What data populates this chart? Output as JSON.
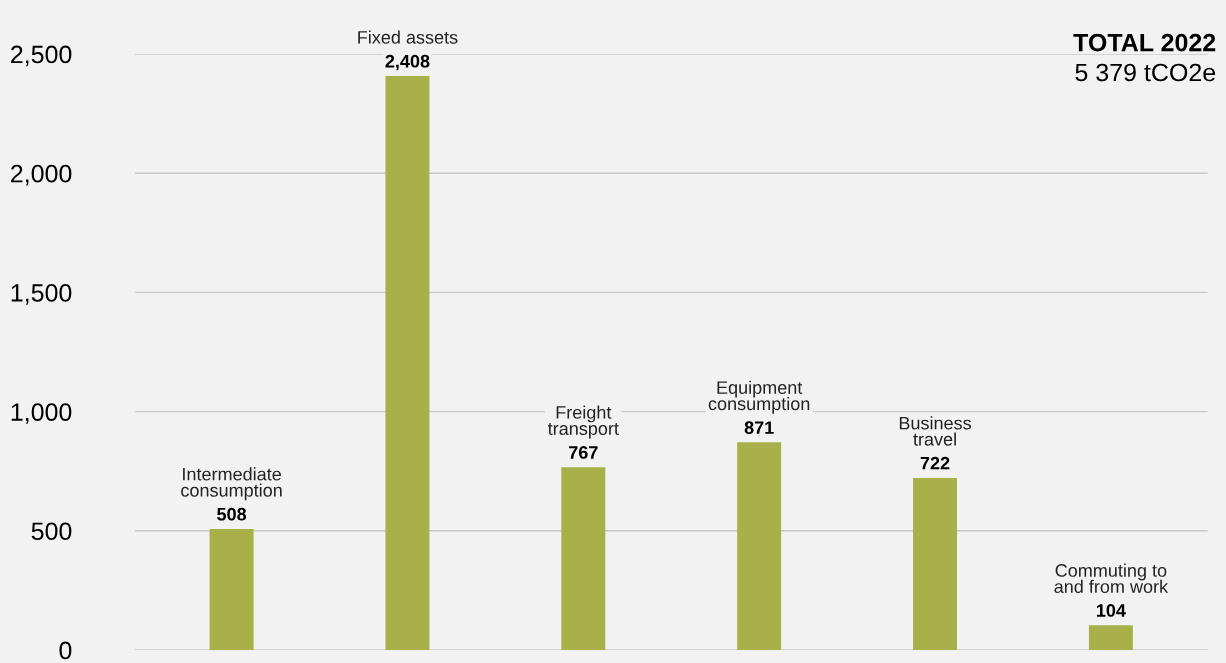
{
  "chart_data": {
    "type": "bar",
    "title": "TOTAL 2022",
    "subtitle": "5 379 tCO2e",
    "categories": [
      "Intermediate\nconsumption",
      "Fixed assets",
      "Freight\ntransport",
      "Equipment\nconsumption",
      "Business\ntravel",
      "Commuting to\nand from work"
    ],
    "values": [
      508,
      2408,
      767,
      871,
      722,
      104
    ],
    "color": "#a8b04a",
    "ylim": [
      0,
      2500
    ],
    "yticks": [
      {
        "value": 0,
        "label": "0"
      },
      {
        "value": 500,
        "label": "500"
      },
      {
        "value": 1000,
        "label": "1,000"
      },
      {
        "value": 1500,
        "label": "1,500"
      },
      {
        "value": 2000,
        "label": "2,000"
      },
      {
        "value": 2500,
        "label": "2,500"
      }
    ],
    "grid": "y",
    "data_labels": true,
    "value_labels": [
      "508",
      "2,408",
      "767",
      "871",
      "722",
      "104"
    ],
    "tick_labels": "y"
  }
}
